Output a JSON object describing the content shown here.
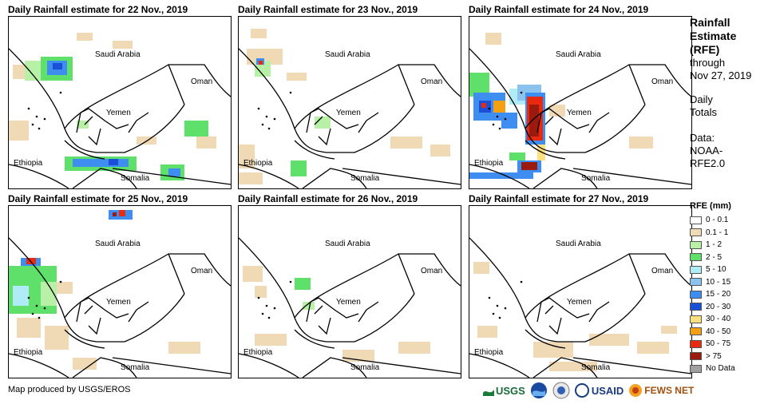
{
  "panels": [
    {
      "title": "Daily Rainfall estimate for 22 Nov., 2019"
    },
    {
      "title": "Daily Rainfall estimate for 23 Nov., 2019"
    },
    {
      "title": "Daily Rainfall estimate for 24 Nov., 2019"
    },
    {
      "title": "Daily Rainfall estimate for 25 Nov., 2019"
    },
    {
      "title": "Daily Rainfall estimate for 26 Nov., 2019"
    },
    {
      "title": "Daily Rainfall estimate for 27 Nov., 2019"
    }
  ],
  "map_labels": {
    "saudi": "Saudi Arabia",
    "oman": "Oman",
    "yemen": "Yemen",
    "ethiopia": "Ethiopia",
    "somalia": "Somalia"
  },
  "side": {
    "title1": "Rainfall",
    "title2": "Estimate",
    "title3": "(RFE)",
    "through": "through",
    "date": "Nov 27, 2019",
    "daily": "Daily",
    "totals": "Totals",
    "data": "Data:",
    "noaa": "NOAA-",
    "rfe2": "RFE2.0"
  },
  "legend": {
    "title": "RFE (mm)",
    "items": [
      {
        "label": "0 - 0.1",
        "color": "#ffffff"
      },
      {
        "label": "0.1 - 1",
        "color": "#f0d9b5"
      },
      {
        "label": "1 - 2",
        "color": "#b8f0a8"
      },
      {
        "label": "2 - 5",
        "color": "#5fe06a"
      },
      {
        "label": "5 - 10",
        "color": "#b0ecf5"
      },
      {
        "label": "10 - 15",
        "color": "#8ac2f0"
      },
      {
        "label": "15 - 20",
        "color": "#3d8ef0"
      },
      {
        "label": "20 - 30",
        "color": "#1a50d8"
      },
      {
        "label": "30 - 40",
        "color": "#ffe080"
      },
      {
        "label": "40 - 50",
        "color": "#f5a010"
      },
      {
        "label": "50 - 75",
        "color": "#e82a10"
      },
      {
        "label": "> 75",
        "color": "#9a1a10"
      },
      {
        "label": "No Data",
        "color": "#a0a0a0"
      }
    ]
  },
  "credit": "Map produced by USGS/EROS",
  "logos": {
    "usgs": "USGS",
    "usaid": "USAID",
    "fews": "FEWS NET"
  }
}
